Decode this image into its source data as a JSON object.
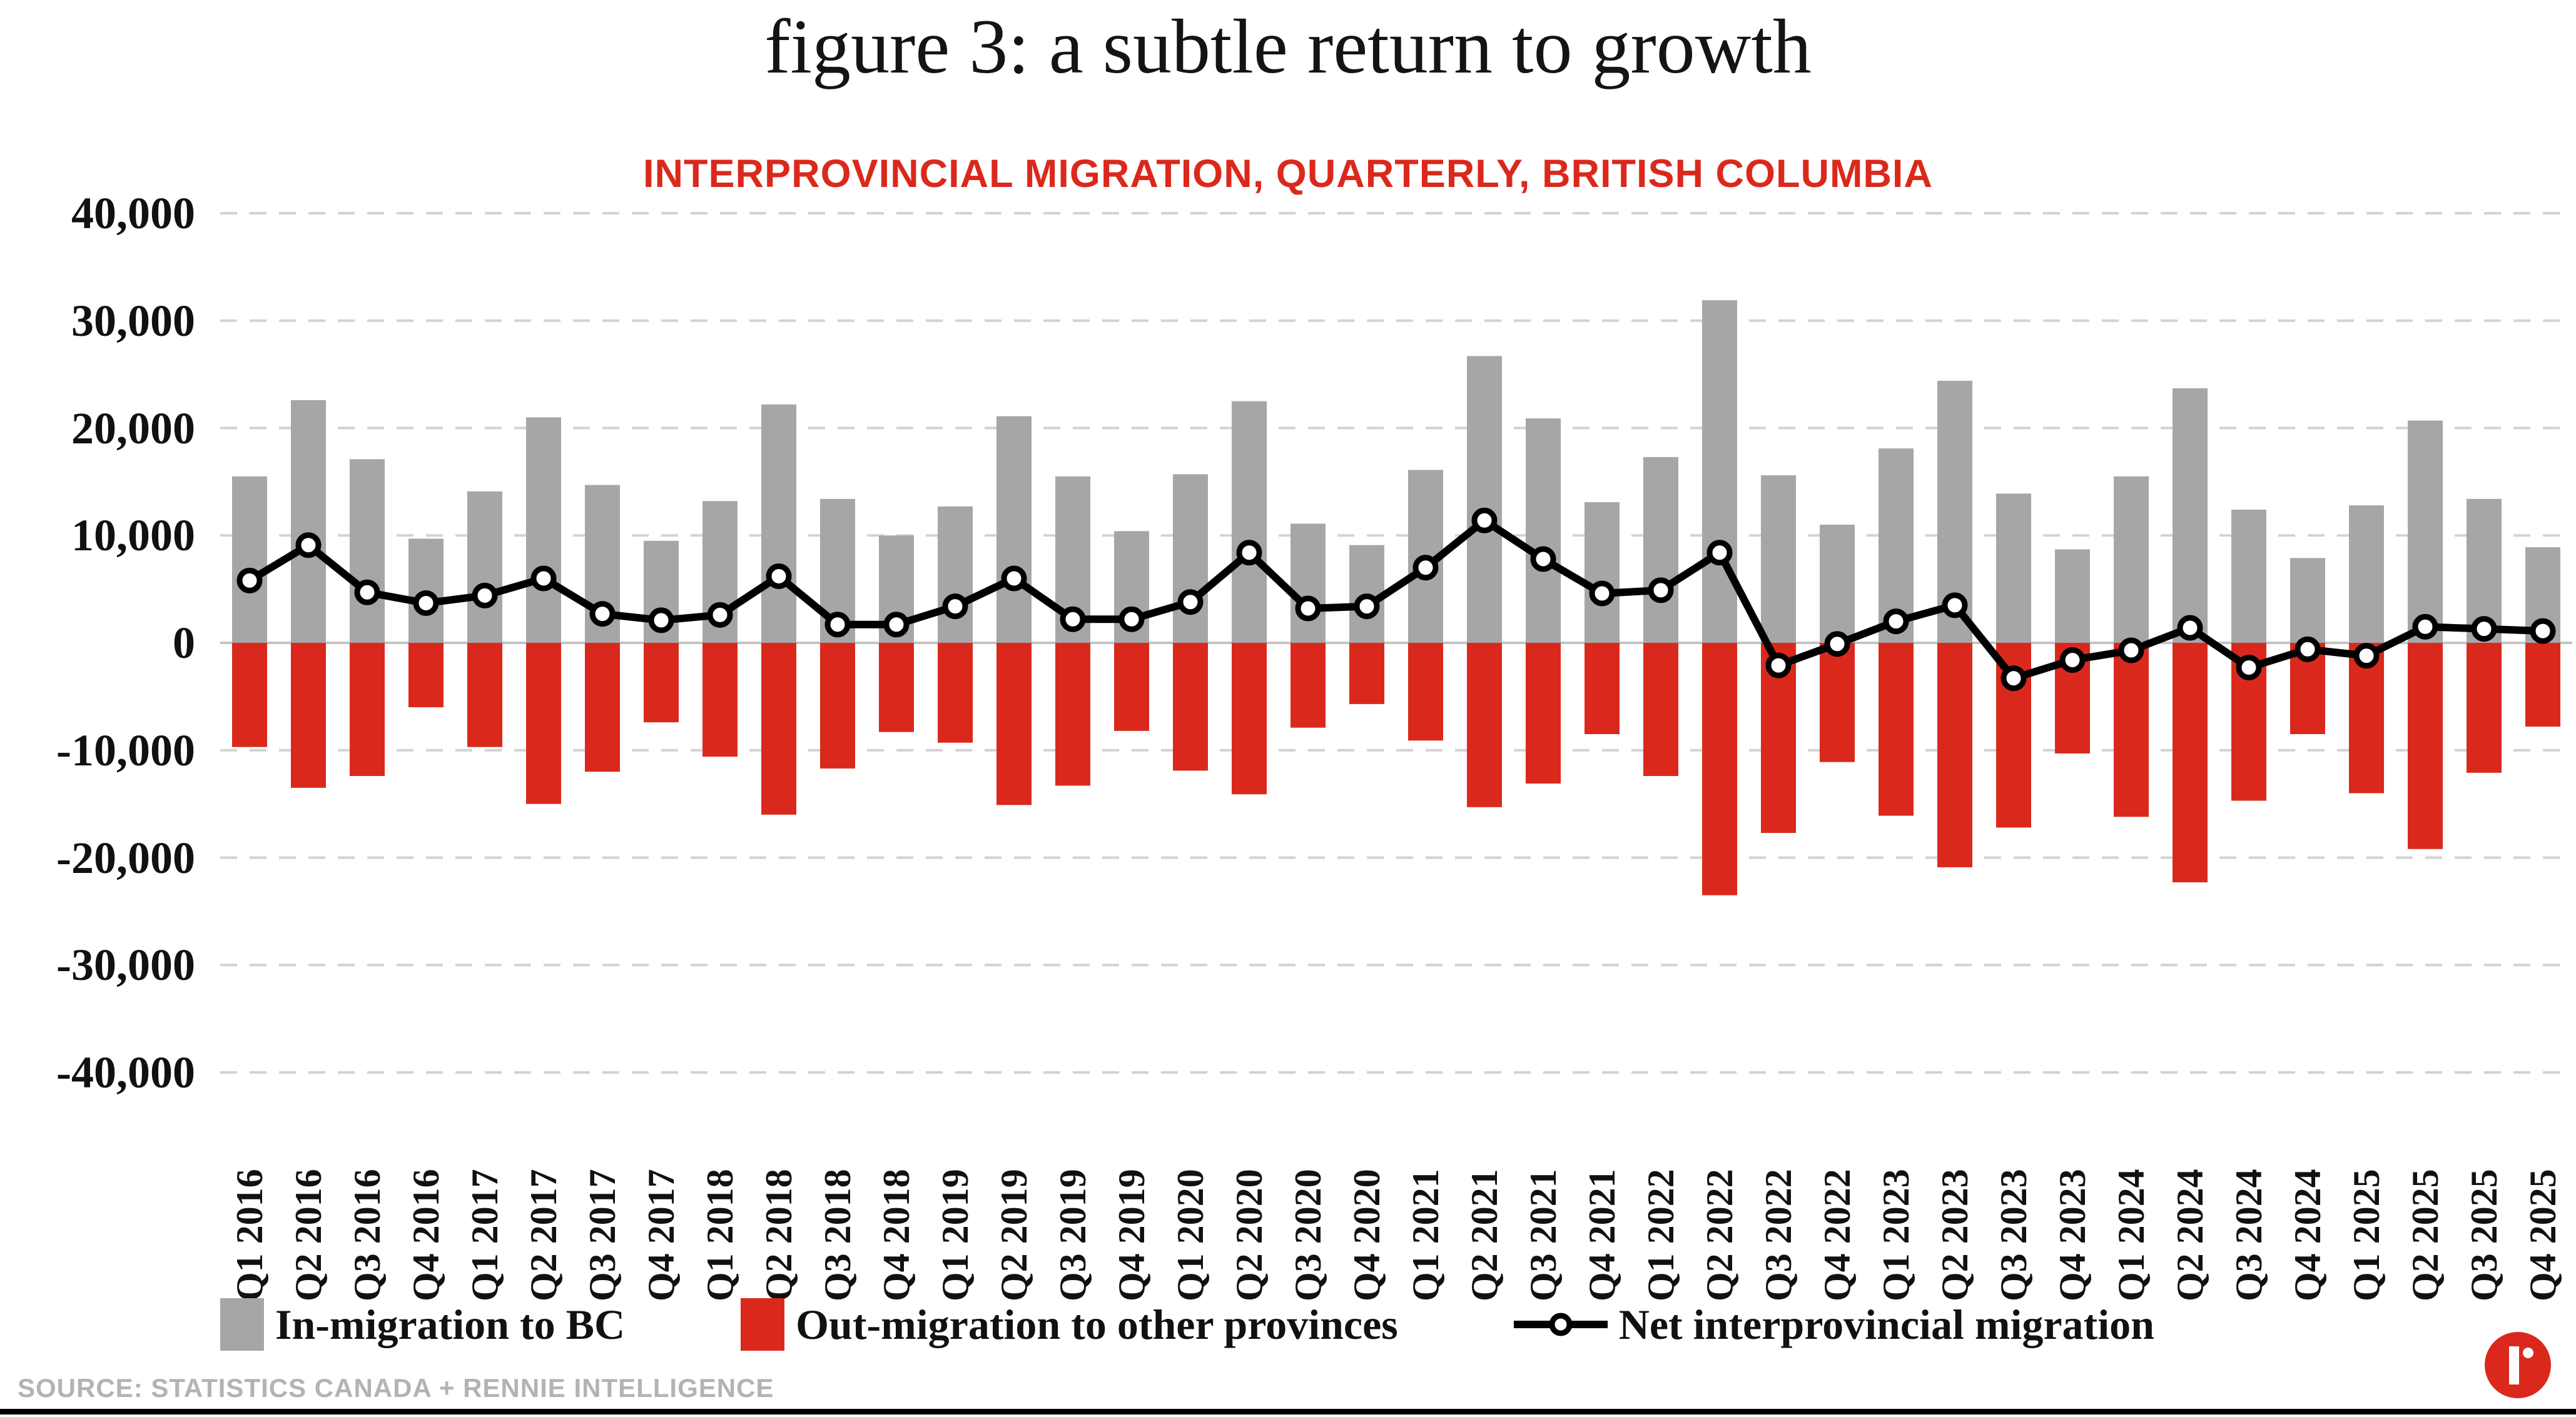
{
  "title": "figure 3: a subtle return to growth",
  "subtitle": "INTERPROVINCIAL MIGRATION, QUARTERLY, BRITISH COLUMBIA",
  "source": "SOURCE: STATISTICS CANADA + RENNIE INTELLIGENCE",
  "colors": {
    "in_bar": "#A6A6A6",
    "out_bar": "#DA291C",
    "net_line": "#000000",
    "net_point_fill": "#FFFFFF",
    "grid_dashed": "#D2D2D2",
    "zero_line": "#C4C4C4",
    "subtitle_red": "#DA291C",
    "source_gray": "#B3B3B3",
    "logo_red": "#DA291C"
  },
  "chart_data": {
    "type": "bar+line combo",
    "title": "figure 3: a subtle return to growth",
    "subtitle": "INTERPROVINCIAL MIGRATION, QUARTERLY, BRITISH COLUMBIA",
    "xlabel": "",
    "ylabel": "",
    "ylim": [
      -40000,
      40000
    ],
    "grid": "horizontal dashed every 10,000; solid line at 0",
    "legend_position": "bottom",
    "yticks": [
      40000,
      30000,
      20000,
      10000,
      0,
      -10000,
      -20000,
      -30000,
      -40000
    ],
    "ytick_labels": [
      "40,000",
      "30,000",
      "20,000",
      "10,000",
      "0",
      "-10,000",
      "-20,000",
      "-30,000",
      "-40,000"
    ],
    "categories": [
      "Q1 2016",
      "Q2 2016",
      "Q3 2016",
      "Q4 2016",
      "Q1 2017",
      "Q2 2017",
      "Q3 2017",
      "Q4 2017",
      "Q1 2018",
      "Q2 2018",
      "Q3 2018",
      "Q4 2018",
      "Q1 2019",
      "Q2 2019",
      "Q3 2019",
      "Q4 2019",
      "Q1 2020",
      "Q2 2020",
      "Q3 2020",
      "Q4 2020",
      "Q1 2021",
      "Q2 2021",
      "Q3 2021",
      "Q4 2021",
      "Q1 2022",
      "Q2 2022",
      "Q3 2022",
      "Q4 2022",
      "Q1 2023",
      "Q2 2023",
      "Q3 2023",
      "Q4 2023",
      "Q1 2024",
      "Q2 2024",
      "Q3 2024",
      "Q4 2024",
      "Q1 2025",
      "Q2 2025",
      "Q3 2025",
      "Q4 2025"
    ],
    "series": [
      {
        "name": "In-migration to BC",
        "type": "bar",
        "color": "#A6A6A6",
        "values": [
          15500,
          22600,
          17100,
          9700,
          14100,
          21000,
          14700,
          9500,
          13200,
          22200,
          13400,
          10000,
          12700,
          21100,
          15500,
          10400,
          15700,
          22500,
          11100,
          9100,
          16100,
          26700,
          20900,
          13100,
          17300,
          31900,
          15600,
          11000,
          18100,
          24400,
          13900,
          8700,
          15500,
          23700,
          12400,
          7900,
          12800,
          20700,
          13400,
          8900
        ]
      },
      {
        "name": "Out-migration to other provinces",
        "type": "bar",
        "color": "#DA291C",
        "values": [
          -9700,
          -13500,
          -12400,
          -6000,
          -9700,
          -15000,
          -12000,
          -7400,
          -10600,
          -16000,
          -11700,
          -8300,
          -9300,
          -15100,
          -13300,
          -8200,
          -11900,
          -14100,
          -7900,
          -5700,
          -9100,
          -15300,
          -13100,
          -8500,
          -12400,
          -23500,
          -17700,
          -11100,
          -16100,
          -20900,
          -17200,
          -10300,
          -16200,
          -22300,
          -14700,
          -8500,
          -14000,
          -19200,
          -12100,
          -7800
        ]
      },
      {
        "name": "Net interprovincial migration",
        "type": "line",
        "color": "#000000",
        "values": [
          5800,
          9100,
          4700,
          3700,
          4400,
          6000,
          2700,
          2100,
          2600,
          6200,
          1700,
          1700,
          3400,
          6000,
          2200,
          2200,
          3800,
          8400,
          3200,
          3400,
          7000,
          11400,
          7800,
          4600,
          4900,
          8400,
          -2100,
          -100,
          2000,
          3500,
          -3300,
          -1600,
          -700,
          1400,
          -2300,
          -600,
          -1200,
          1500,
          1300,
          1100
        ]
      }
    ]
  }
}
